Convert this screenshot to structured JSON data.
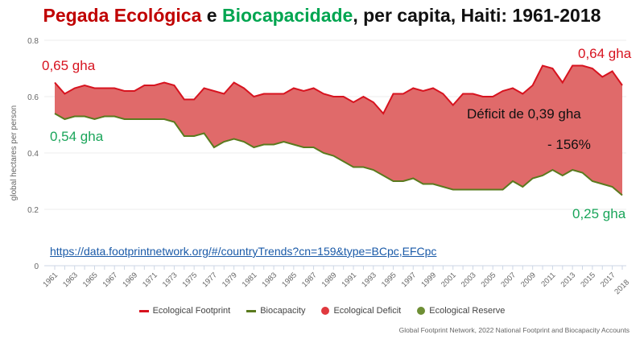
{
  "title": {
    "part1": "Pegada Ecológica",
    "part2": " e ",
    "part3": "Biocapacidade",
    "part4": ", per capita, Haiti: 1961-2018"
  },
  "colors": {
    "footprint": "#d7131f",
    "biocapacity": "#5a7a1e",
    "deficit_fill": "#e06a6a",
    "reserve": "#6e8f35",
    "title_red": "#c00000",
    "title_green": "#00a550"
  },
  "chart_data": {
    "type": "area",
    "title": "Pegada Ecológica e Biocapacidade, per capita, Haiti: 1961-2018",
    "xlabel": "",
    "ylabel": "global hectares per person",
    "ylim": [
      0,
      0.8
    ],
    "yticks": [
      "0",
      "0.2",
      "0.4",
      "0.6",
      "0.8"
    ],
    "ytick_values": [
      0,
      0.2,
      0.4,
      0.6,
      0.8
    ],
    "grid": true,
    "x": [
      1961,
      1962,
      1963,
      1964,
      1965,
      1966,
      1967,
      1968,
      1969,
      1970,
      1971,
      1972,
      1973,
      1974,
      1975,
      1976,
      1977,
      1978,
      1979,
      1980,
      1981,
      1982,
      1983,
      1984,
      1985,
      1986,
      1987,
      1988,
      1989,
      1990,
      1991,
      1992,
      1993,
      1994,
      1995,
      1996,
      1997,
      1998,
      1999,
      2000,
      2001,
      2002,
      2003,
      2004,
      2005,
      2006,
      2007,
      2008,
      2009,
      2010,
      2011,
      2012,
      2013,
      2014,
      2015,
      2016,
      2017,
      2018
    ],
    "xtick_labels": [
      "1961",
      "1963",
      "1965",
      "1967",
      "1969",
      "1971",
      "1973",
      "1975",
      "1977",
      "1979",
      "1981",
      "1983",
      "1985",
      "1987",
      "1989",
      "1991",
      "1993",
      "1995",
      "1997",
      "1999",
      "2001",
      "2003",
      "2005",
      "2007",
      "2009",
      "2011",
      "2013",
      "2015",
      "2017",
      "2018"
    ],
    "series": [
      {
        "name": "Ecological Footprint",
        "values": [
          0.65,
          0.61,
          0.63,
          0.64,
          0.63,
          0.63,
          0.63,
          0.62,
          0.62,
          0.64,
          0.64,
          0.65,
          0.64,
          0.59,
          0.59,
          0.63,
          0.62,
          0.61,
          0.65,
          0.63,
          0.6,
          0.61,
          0.61,
          0.61,
          0.63,
          0.62,
          0.63,
          0.61,
          0.6,
          0.6,
          0.58,
          0.6,
          0.58,
          0.54,
          0.61,
          0.61,
          0.63,
          0.62,
          0.63,
          0.61,
          0.57,
          0.61,
          0.61,
          0.6,
          0.6,
          0.62,
          0.63,
          0.61,
          0.64,
          0.71,
          0.7,
          0.65,
          0.71,
          0.71,
          0.7,
          0.67,
          0.69,
          0.64
        ]
      },
      {
        "name": "Biocapacity",
        "values": [
          0.54,
          0.52,
          0.53,
          0.53,
          0.52,
          0.53,
          0.53,
          0.52,
          0.52,
          0.52,
          0.52,
          0.52,
          0.51,
          0.46,
          0.46,
          0.47,
          0.42,
          0.44,
          0.45,
          0.44,
          0.42,
          0.43,
          0.43,
          0.44,
          0.43,
          0.42,
          0.42,
          0.4,
          0.39,
          0.37,
          0.35,
          0.35,
          0.34,
          0.32,
          0.3,
          0.3,
          0.31,
          0.29,
          0.29,
          0.28,
          0.27,
          0.27,
          0.27,
          0.27,
          0.27,
          0.27,
          0.3,
          0.28,
          0.31,
          0.32,
          0.34,
          0.32,
          0.34,
          0.33,
          0.3,
          0.29,
          0.28,
          0.25
        ]
      }
    ],
    "legend": [
      "Ecological Footprint",
      "Biocapacity",
      "Ecological Deficit",
      "Ecological Reserve"
    ],
    "legend_position": "bottom",
    "annotations": {
      "start_footprint": "0,65 gha",
      "start_biocapacity": "0,54 gha",
      "end_footprint": "0,64 gha",
      "end_biocapacity": "0,25 gha",
      "deficit": "Déficit de 0,39 gha",
      "deficit_pct": "- 156%"
    }
  },
  "link": "https://data.footprintnetwork.org/#/countryTrends?cn=159&type=BCpc,EFCpc",
  "source": "Global Footprint Network, 2022 National Footprint and Biocapacity Accounts"
}
